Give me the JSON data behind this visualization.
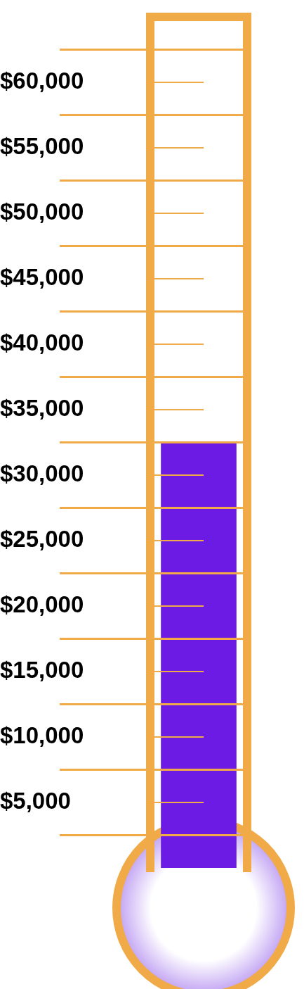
{
  "chart_data": {
    "type": "bar",
    "categories": [
      null
    ],
    "values": [
      32500
    ],
    "color": "#6b1be3",
    "ylim": [
      0,
      65000
    ],
    "grid": "y",
    "yticks": [
      {
        "value": 5000,
        "label": "$5,000"
      },
      {
        "value": 10000,
        "label": "$10,000"
      },
      {
        "value": 15000,
        "label": "$15,000"
      },
      {
        "value": 20000,
        "label": "$20,000"
      },
      {
        "value": 25000,
        "label": "$25,000"
      },
      {
        "value": 30000,
        "label": "$30,000"
      },
      {
        "value": 35000,
        "label": "$35,000"
      },
      {
        "value": 40000,
        "label": "$40,000"
      },
      {
        "value": 45000,
        "label": "$45,000"
      },
      {
        "value": 50000,
        "label": "$50,000"
      },
      {
        "value": 55000,
        "label": "$55,000"
      },
      {
        "value": 60000,
        "label": "$60,000"
      }
    ],
    "ref_lines": [
      {
        "axis": "y",
        "value": 2500,
        "color": "#f0aa48"
      },
      {
        "axis": "y",
        "value": 7500,
        "color": "#f0aa48"
      },
      {
        "axis": "y",
        "value": 12500,
        "color": "#f0aa48"
      },
      {
        "axis": "y",
        "value": 17500,
        "color": "#f0aa48"
      },
      {
        "axis": "y",
        "value": 22500,
        "color": "#f0aa48"
      },
      {
        "axis": "y",
        "value": 27500,
        "color": "#f0aa48"
      },
      {
        "axis": "y",
        "value": 32500,
        "color": "#f0aa48"
      },
      {
        "axis": "y",
        "value": 37500,
        "color": "#f0aa48"
      },
      {
        "axis": "y",
        "value": 42500,
        "color": "#f0aa48"
      },
      {
        "axis": "y",
        "value": 47500,
        "color": "#f0aa48"
      },
      {
        "axis": "y",
        "value": 52500,
        "color": "#f0aa48"
      },
      {
        "axis": "y",
        "value": 57500,
        "color": "#f0aa48"
      },
      {
        "axis": "y",
        "value": 62500,
        "color": "#f0aa48"
      }
    ]
  }
}
